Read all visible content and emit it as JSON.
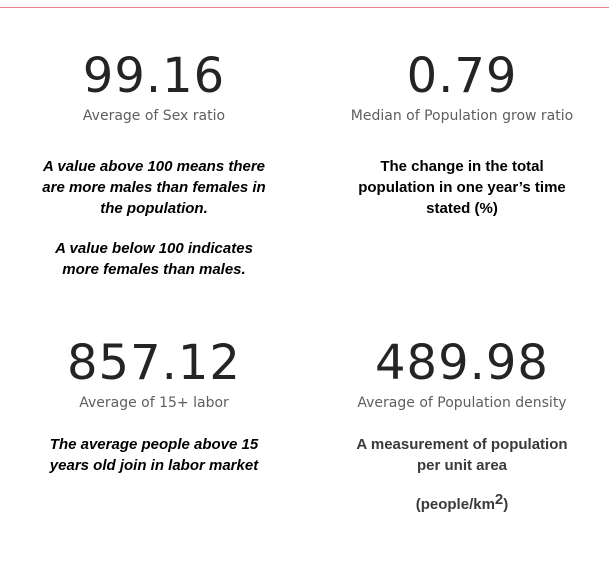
{
  "kpis": {
    "sex_ratio": {
      "value": "99.16",
      "label": "Average of Sex ratio",
      "description": [
        "A value above 100 means there",
        "are more males than females in",
        "the population."
      ],
      "note": [
        "A value below 100 indicates",
        "more females than males."
      ]
    },
    "pop_grow": {
      "value": "0.79",
      "label": "Median of Population grow ratio",
      "description": [
        "The change in the total",
        "population in one year’s time",
        "stated (%)"
      ]
    },
    "labor": {
      "value": "857.12",
      "label": "Average of 15+ labor",
      "description": [
        "The average people above 15",
        "years old join in labor market"
      ]
    },
    "density": {
      "value": "489.98",
      "label": "Average of Population density",
      "description": [
        "A measurement of population",
        "per unit area"
      ],
      "unit_prefix": "(people/km",
      "unit_sup": "2",
      "unit_suffix": ")"
    }
  },
  "colors": {
    "top_border": "#e5808a",
    "value_text": "#252423",
    "label_text": "#605e5c"
  }
}
